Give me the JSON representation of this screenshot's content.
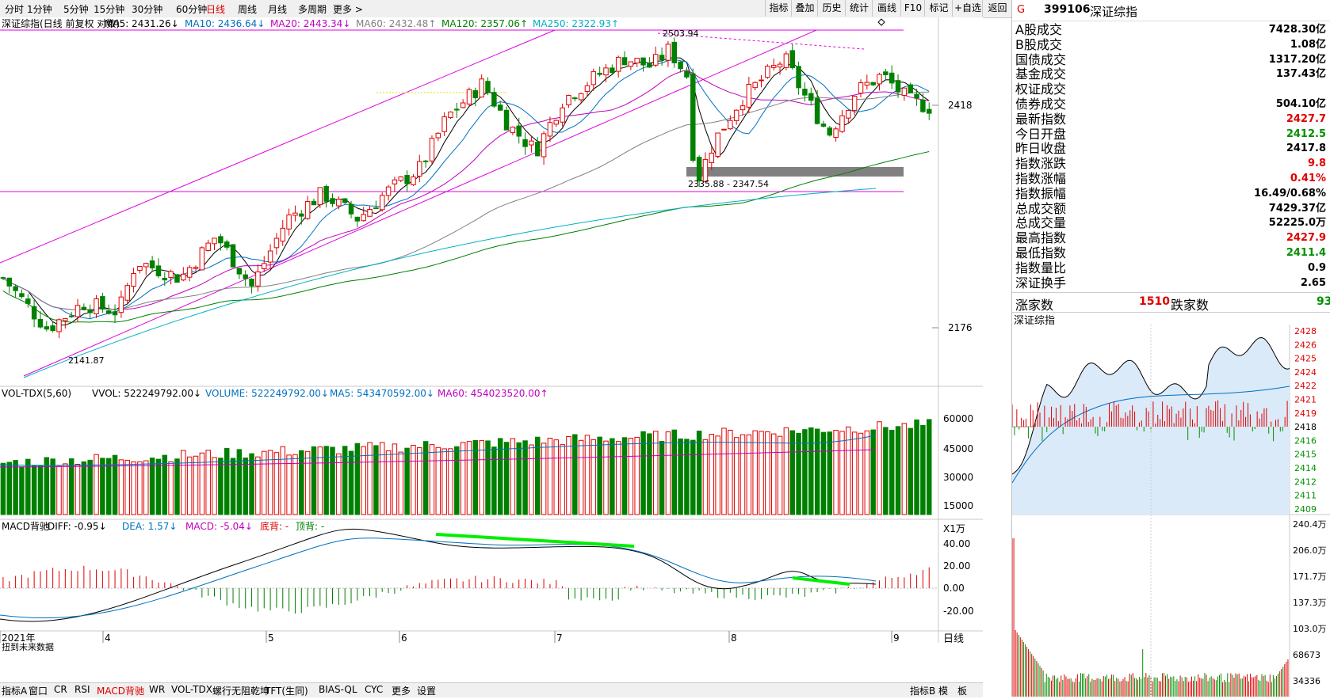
{
  "toolbar": {
    "timeframes": [
      "分时",
      "1分钟",
      "5分钟",
      "15分钟",
      "30分钟",
      "60分钟",
      "日线",
      "周线",
      "月线",
      "多周期",
      "更多 >"
    ],
    "active_timeframe": "日线",
    "buttons": [
      "指标",
      "叠加",
      "历史",
      "统计",
      "画线",
      "F10",
      "标记",
      "+自选",
      "返回"
    ]
  },
  "main_chart": {
    "title": "深证综指(日线 前复权 对数)",
    "ma_legend": [
      {
        "label": "MA5: 2431.26↓",
        "color": "#000000"
      },
      {
        "label": "MA10: 2436.64↓",
        "color": "#0070c0"
      },
      {
        "label": "MA20: 2443.34↓",
        "color": "#c000c0"
      },
      {
        "label": "MA60: 2432.48↑",
        "color": "#808080"
      },
      {
        "label": "MA120: 2357.06↑",
        "color": "#008000"
      },
      {
        "label": "MA250: 2322.93↑",
        "color": "#00b0c0"
      }
    ],
    "y_labels": [
      "2418",
      "2176"
    ],
    "annotations": {
      "high": "2503.94",
      "low": "2141.87",
      "zone": "2335.88 - 2347.54"
    },
    "x_labels": [
      "2021年",
      "4",
      "5",
      "6",
      "7",
      "8",
      "9"
    ]
  },
  "volume_panel": {
    "title": "VOL-TDX(5,60)",
    "legend": [
      {
        "label": "VVOL: 522249792.00↓",
        "color": "#000000"
      },
      {
        "label": "VOLUME: 522249792.00↓",
        "color": "#0070c0"
      },
      {
        "label": "MA5: 543470592.00↓",
        "color": "#0070c0"
      },
      {
        "label": "MA60: 454023520.00↑",
        "color": "#c000c0"
      }
    ],
    "y_labels": [
      "60000",
      "45000",
      "30000",
      "15000"
    ],
    "unit": "X1万"
  },
  "macd_panel": {
    "title": "MACD背驰",
    "legend": [
      {
        "label": "DIFF: -0.95↓",
        "color": "#000000"
      },
      {
        "label": "DEA: 1.57↓",
        "color": "#0070c0"
      },
      {
        "label": "MACD: -5.04↓",
        "color": "#c000c0"
      },
      {
        "label": "底背: -",
        "color": "#e00000"
      },
      {
        "label": "顶背: -",
        "color": "#008000"
      }
    ],
    "y_labels": [
      "40.00",
      "20.00",
      "0.00",
      "-20.00"
    ],
    "note": "扭到未来数据"
  },
  "period_label": "日线",
  "bottom_tabs": [
    "指标A",
    "窗口",
    "CR",
    "RSI",
    "MACD背驰",
    "WR",
    "VOL-TDX",
    "螺行无阻乾坤",
    "TFT(生同)",
    "BIAS-QL",
    "CYC",
    "更多",
    "设置"
  ],
  "bottom_right": [
    "指标B",
    "模",
    "板"
  ],
  "quote": {
    "marker": "G",
    "code": "399106",
    "name": "深证综指",
    "rows": [
      {
        "label": "A股成交",
        "value": "7428.30亿",
        "color": "#000000"
      },
      {
        "label": "B股成交",
        "value": "1.08亿",
        "color": "#000000"
      },
      {
        "label": "国债成交",
        "value": "1317.20亿",
        "color": "#000000"
      },
      {
        "label": "基金成交",
        "value": "137.43亿",
        "color": "#000000"
      },
      {
        "label": "权证成交",
        "value": "",
        "color": "#000000"
      },
      {
        "label": "债券成交",
        "value": "504.10亿",
        "color": "#000000"
      },
      {
        "label": "最新指数",
        "value": "2427.7",
        "color": "#e00000"
      },
      {
        "label": "今日开盘",
        "value": "2412.5",
        "color": "#009000"
      },
      {
        "label": "昨日收盘",
        "value": "2417.8",
        "color": "#000000"
      },
      {
        "label": "指数涨跌",
        "value": "9.8",
        "color": "#e00000"
      },
      {
        "label": "指数涨幅",
        "value": "0.41%",
        "color": "#e00000"
      },
      {
        "label": "指数振幅",
        "value": "16.49/0.68%",
        "color": "#000000"
      },
      {
        "label": "总成交额",
        "value": "7429.37亿",
        "color": "#000000"
      },
      {
        "label": "总成交量",
        "value": "52225.0万",
        "color": "#000000"
      },
      {
        "label": "最高指数",
        "value": "2427.9",
        "color": "#e00000"
      },
      {
        "label": "最低指数",
        "value": "2411.4",
        "color": "#009000"
      },
      {
        "label": "指数量比",
        "value": "0.9",
        "color": "#000000"
      },
      {
        "label": "深证换手",
        "value": "2.65",
        "color": "#000000"
      }
    ],
    "breadth": {
      "up_label": "涨家数",
      "up_value": "1510",
      "down_label": "跌家数",
      "down_value": "93"
    }
  },
  "intraday": {
    "title": "深证综指",
    "price_labels": [
      "2428",
      "2426",
      "2425",
      "2424",
      "2422",
      "2421",
      "2419",
      "2418",
      "2416",
      "2415",
      "2414",
      "2412",
      "2411",
      "2409"
    ],
    "volume_labels": [
      "240.4万",
      "206.0万",
      "171.7万",
      "137.3万",
      "103.0万",
      "68673",
      "34336"
    ]
  }
}
